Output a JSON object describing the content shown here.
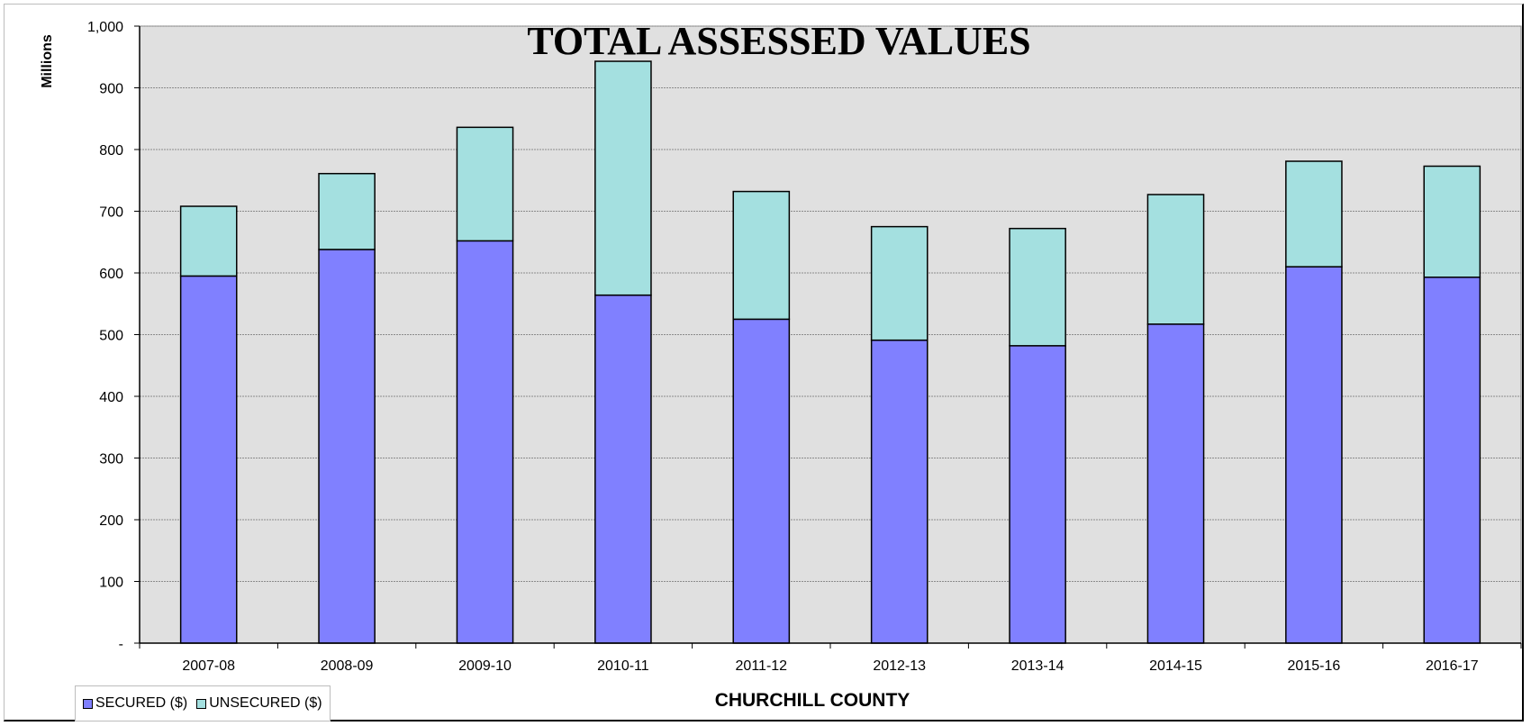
{
  "chart_data": {
    "type": "bar",
    "stacked": true,
    "title": "TOTAL ASSESSED VALUES",
    "xlabel": "CHURCHILL COUNTY",
    "ylabel": "Millions",
    "categories": [
      "2007-08",
      "2008-09",
      "2009-10",
      "2010-11",
      "2011-12",
      "2012-13",
      "2013-14",
      "2014-15",
      "2015-16",
      "2016-17"
    ],
    "series": [
      {
        "name": "SECURED ($)",
        "color": "#8080ff",
        "values": [
          595,
          638,
          652,
          564,
          525,
          491,
          482,
          517,
          610,
          593
        ]
      },
      {
        "name": "UNSECURED ($)",
        "color": "#a4e0e0",
        "values": [
          113,
          123,
          184,
          379,
          207,
          184,
          190,
          210,
          171,
          180
        ]
      }
    ],
    "ylim": [
      0,
      1000
    ],
    "yticks": [
      0,
      100,
      200,
      300,
      400,
      500,
      600,
      700,
      800,
      900,
      1000
    ],
    "ytick_labels": [
      "-",
      "100",
      "200",
      "300",
      "400",
      "500",
      "600",
      "700",
      "800",
      "900",
      "1,000"
    ],
    "grid": true,
    "legend": "bottom-left",
    "plot_background": "#e0e0e0"
  }
}
